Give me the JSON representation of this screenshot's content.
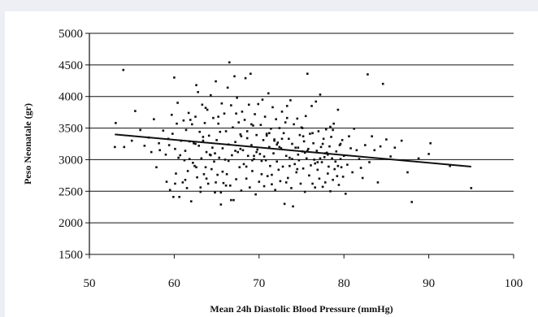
{
  "chart_data": {
    "type": "scatter",
    "title": "",
    "xlabel": "Mean 24h Diastolic Blood Pressure (mmHg)",
    "ylabel": "Peso Neonatale (gr)",
    "xlim": [
      50,
      100
    ],
    "ylim": [
      1500,
      5000
    ],
    "xticks": [
      50,
      60,
      70,
      80,
      90,
      100
    ],
    "yticks": [
      1500,
      2000,
      2500,
      3000,
      3500,
      4000,
      4500,
      5000
    ],
    "grid": "horizontal",
    "colors": {
      "points": "#111111",
      "trendline": "#111111",
      "gridlines": "#111111",
      "background": "#ffffff",
      "frame": "#eeeff5"
    },
    "trendline": {
      "x": [
        53,
        95
      ],
      "y": [
        3400,
        2890
      ]
    },
    "points_x": [
      53.0,
      53.1,
      54.0,
      54.1,
      55.0,
      55.4,
      56.0,
      56.5,
      57.0,
      57.3,
      57.6,
      57.9,
      58.2,
      58.3,
      58.7,
      59.0,
      59.1,
      59.3,
      59.5,
      59.7,
      59.8,
      59.9,
      60.0,
      60.1,
      60.2,
      60.3,
      60.4,
      60.5,
      60.6,
      60.8,
      61.0,
      61.1,
      61.2,
      61.3,
      61.4,
      61.5,
      61.6,
      61.7,
      61.8,
      62.0,
      62.1,
      62.2,
      62.3,
      62.4,
      62.5,
      62.6,
      62.7,
      62.8,
      62.9,
      63.0,
      63.1,
      63.2,
      63.3,
      63.4,
      63.5,
      63.6,
      63.7,
      63.8,
      63.9,
      64.0,
      64.1,
      64.2,
      64.3,
      64.4,
      64.5,
      64.6,
      64.7,
      64.8,
      64.9,
      65.0,
      65.1,
      65.2,
      65.3,
      65.4,
      65.5,
      65.6,
      65.7,
      65.8,
      65.9,
      66.0,
      66.1,
      66.2,
      66.3,
      66.4,
      66.5,
      66.6,
      66.7,
      66.8,
      66.9,
      67.0,
      67.1,
      67.2,
      67.3,
      67.4,
      67.5,
      67.6,
      67.7,
      67.8,
      67.9,
      68.0,
      68.1,
      68.2,
      68.3,
      68.4,
      68.5,
      68.6,
      68.7,
      68.8,
      68.9,
      69.0,
      69.1,
      69.2,
      69.3,
      69.4,
      69.5,
      69.6,
      69.7,
      69.8,
      69.9,
      70.0,
      70.1,
      70.2,
      70.3,
      70.4,
      70.5,
      70.6,
      70.7,
      70.8,
      70.9,
      71.0,
      71.1,
      71.2,
      71.3,
      71.4,
      71.5,
      71.6,
      71.7,
      71.8,
      71.9,
      72.0,
      72.1,
      72.2,
      72.3,
      72.4,
      72.5,
      72.6,
      72.7,
      72.8,
      72.9,
      73.0,
      73.1,
      73.2,
      73.3,
      73.4,
      73.5,
      73.6,
      73.7,
      73.8,
      73.9,
      74.0,
      74.1,
      74.2,
      74.3,
      74.4,
      74.5,
      74.6,
      74.7,
      74.8,
      74.9,
      75.0,
      75.1,
      75.2,
      75.3,
      75.4,
      75.5,
      75.6,
      75.7,
      75.8,
      75.9,
      76.0,
      76.1,
      76.2,
      76.3,
      76.4,
      76.5,
      76.6,
      76.7,
      76.8,
      76.9,
      77.0,
      77.1,
      77.2,
      77.3,
      77.4,
      77.5,
      77.6,
      77.7,
      77.8,
      77.9,
      78.0,
      78.1,
      78.2,
      78.3,
      78.4,
      78.5,
      78.6,
      78.7,
      78.8,
      78.9,
      79.0,
      79.1,
      79.2,
      79.3,
      79.4,
      79.5,
      79.6,
      79.7,
      79.8,
      79.9,
      80.0,
      80.2,
      80.4,
      80.6,
      80.8,
      81.0,
      81.2,
      81.5,
      81.8,
      82.0,
      82.2,
      82.5,
      82.8,
      83.0,
      83.3,
      83.6,
      84.0,
      84.3,
      84.6,
      85.0,
      85.5,
      86.0,
      86.8,
      87.5,
      88.0,
      88.8,
      90.0,
      90.2,
      92.5,
      95.0,
      60.1,
      60.7,
      61.3,
      61.9,
      62.5,
      63.1,
      63.7,
      64.3,
      64.9,
      65.5,
      66.1,
      66.7,
      67.3,
      67.9,
      68.5,
      69.1,
      69.7,
      70.3,
      70.9,
      71.5,
      72.1,
      72.7,
      73.3,
      73.9,
      74.5,
      75.1,
      75.7,
      76.3,
      76.9,
      77.5,
      78.1,
      78.7,
      79.3,
      59.4,
      61.8,
      63.4,
      65.7,
      67.8,
      69.4,
      71.8,
      73.6,
      75.4,
      77.2,
      79.6,
      62.6,
      64.8,
      66.4,
      68.6,
      70.6,
      72.4,
      74.6,
      76.6,
      78.4,
      63.8,
      65.2,
      67.2,
      69.2,
      71.2,
      73.2,
      75.2,
      77.8
    ],
    "points_y": [
      3200,
      3580,
      4420,
      3200,
      3300,
      3770,
      3470,
      3220,
      3350,
      3120,
      3640,
      2880,
      3260,
      3150,
      3460,
      3080,
      2650,
      3330,
      2520,
      3710,
      3410,
      2410,
      4300,
      3170,
      2780,
      3570,
      3900,
      3030,
      2410,
      3300,
      2640,
      3620,
      2990,
      3140,
      3470,
      2550,
      2820,
      3740,
      3290,
      2340,
      3560,
      2950,
      3260,
      2900,
      3680,
      4180,
      2720,
      4070,
      3220,
      3440,
      2560,
      3020,
      3870,
      3300,
      2770,
      3580,
      2880,
      3120,
      3790,
      2620,
      3380,
      3080,
      4020,
      2850,
      3190,
      3660,
      2970,
      2480,
      4240,
      3310,
      2760,
      3570,
      3030,
      3440,
      2290,
      3890,
      3180,
      2630,
      3730,
      3000,
      3450,
      2770,
      4140,
      3240,
      4540,
      2590,
      3860,
      3070,
      3510,
      2360,
      4320,
      3280,
      2690,
      3980,
      3120,
      3590,
      2880,
      3400,
      2510,
      3760,
      3150,
      2930,
      3630,
      4290,
      2700,
      3340,
      3060,
      3870,
      2560,
      4360,
      3230,
      2820,
      3540,
      3010,
      3720,
      2450,
      3390,
      3160,
      3880,
      2650,
      3090,
      3550,
      2770,
      3950,
      3310,
      2580,
      3680,
      2990,
      3380,
      2740,
      4050,
      3200,
      2900,
      3490,
      2610,
      3830,
      3100,
      3320,
      2520,
      3640,
      2970,
      3270,
      2840,
      3500,
      2660,
      3180,
      3760,
      2890,
      3420,
      2300,
      3590,
      3060,
      3850,
      2710,
      3330,
      3030,
      3940,
      2550,
      3250,
      2260,
      3560,
      2930,
      3190,
      2800,
      3650,
      3080,
      2990,
      3390,
      2620,
      3510,
      3130,
      2860,
      3290,
      2490,
      3690,
      3020,
      4360,
      3170,
      2750,
      3410,
      2910,
      3850,
      2620,
      3260,
      3000,
      2560,
      3920,
      3140,
      2840,
      3450,
      2700,
      4030,
      3200,
      2960,
      2570,
      3330,
      3040,
      2640,
      3480,
      3110,
      2780,
      2890,
      3210,
      2500,
      3360,
      3020,
      2680,
      3570,
      2850,
      2970,
      3130,
      2740,
      3790,
      2600,
      3230,
      3010,
      2880,
      3310,
      2730,
      3060,
      2460,
      2920,
      3370,
      3180,
      2800,
      3490,
      3150,
      3010,
      2870,
      2710,
      3230,
      4350,
      2960,
      3370,
      3150,
      2640,
      3210,
      4200,
      3320,
      3050,
      3190,
      3300,
      2800,
      2330,
      3020,
      3090,
      3260,
      2900,
      2550,
      2620,
      3070,
      2680,
      3630,
      3250,
      2490,
      3820,
      3070,
      2640,
      2480,
      2590,
      2360,
      3730,
      3370,
      2890,
      3560,
      3120,
      2980,
      3410,
      2760,
      3240,
      3330,
      3660,
      3010,
      2850,
      3500,
      3140,
      3420,
      2960,
      3250,
      3080,
      3470,
      2900,
      3230,
      3010,
      3360,
      2810,
      3170,
      3060,
      3300,
      2900,
      3110,
      3020,
      3250,
      2880,
      3100,
      2980,
      3450,
      3050,
      3200,
      3190,
      2940,
      3520,
      2700,
      3680,
      3140,
      2990,
      3420,
      2640,
      3370,
      3100,
      3060,
      3600,
      2790,
      3260,
      2870,
      3510,
      3040,
      3220,
      2780,
      2830,
      3640,
      3010,
      2660,
      3230,
      3490,
      2940,
      3380,
      2720
    ]
  }
}
